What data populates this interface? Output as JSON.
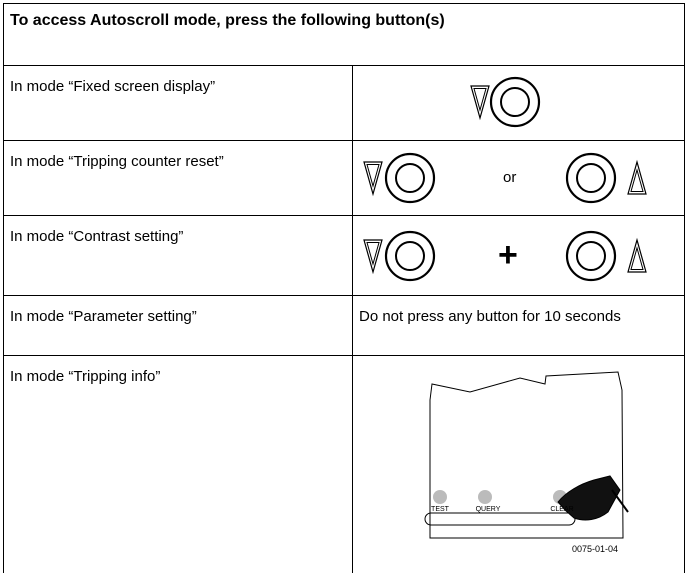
{
  "header": {
    "title": "To access Autoscroll mode, press the following button(s)"
  },
  "table": {
    "rows": [
      [
        "In mode “Fixed screen display”"
      ],
      [
        "In mode “Tripping counter reset”",
        "or"
      ],
      [
        "In mode “Contrast setting”",
        "+"
      ],
      [
        "In mode “Parameter setting”",
        "Do not press any button for 10 seconds"
      ],
      [
        "In mode “Tripping info”"
      ]
    ]
  },
  "figure": {
    "labels": [
      "TEST",
      "QUERY",
      "CLEAR"
    ],
    "code": "0075-01-04"
  }
}
